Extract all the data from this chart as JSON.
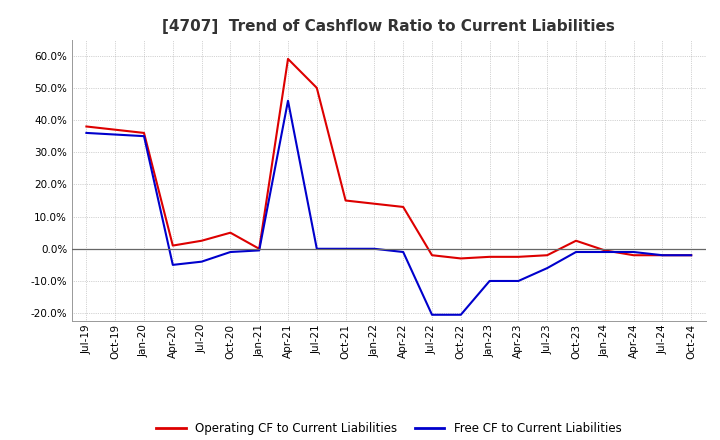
{
  "title": "[4707]  Trend of Cashflow Ratio to Current Liabilities",
  "x_labels": [
    "Jul-19",
    "Oct-19",
    "Jan-20",
    "Apr-20",
    "Jul-20",
    "Oct-20",
    "Jan-21",
    "Apr-21",
    "Jul-21",
    "Oct-21",
    "Jan-22",
    "Apr-22",
    "Jul-22",
    "Oct-22",
    "Jan-23",
    "Apr-23",
    "Jul-23",
    "Oct-23",
    "Jan-24",
    "Apr-24",
    "Jul-24",
    "Oct-24"
  ],
  "operating_cf": [
    0.38,
    0.37,
    0.36,
    0.01,
    0.025,
    0.05,
    0.0,
    0.59,
    0.5,
    0.15,
    0.14,
    0.13,
    -0.02,
    -0.03,
    -0.025,
    -0.025,
    -0.02,
    0.025,
    -0.005,
    -0.02,
    -0.02,
    -0.02
  ],
  "free_cf": [
    0.36,
    0.355,
    0.35,
    -0.05,
    -0.04,
    -0.01,
    -0.005,
    0.46,
    0.0,
    0.0,
    0.0,
    -0.01,
    -0.205,
    -0.205,
    -0.1,
    -0.1,
    -0.06,
    -0.01,
    -0.01,
    -0.01,
    -0.02,
    -0.02
  ],
  "operating_color": "#dd0000",
  "free_color": "#0000cc",
  "ylim": [
    -0.225,
    0.65
  ],
  "yticks": [
    -0.2,
    -0.1,
    0.0,
    0.1,
    0.2,
    0.3,
    0.4,
    0.5,
    0.6
  ],
  "background_color": "#ffffff",
  "grid_color": "#aaaaaa",
  "legend_op": "Operating CF to Current Liabilities",
  "legend_free": "Free CF to Current Liabilities",
  "title_fontsize": 11,
  "tick_fontsize": 7.5,
  "legend_fontsize": 8.5
}
